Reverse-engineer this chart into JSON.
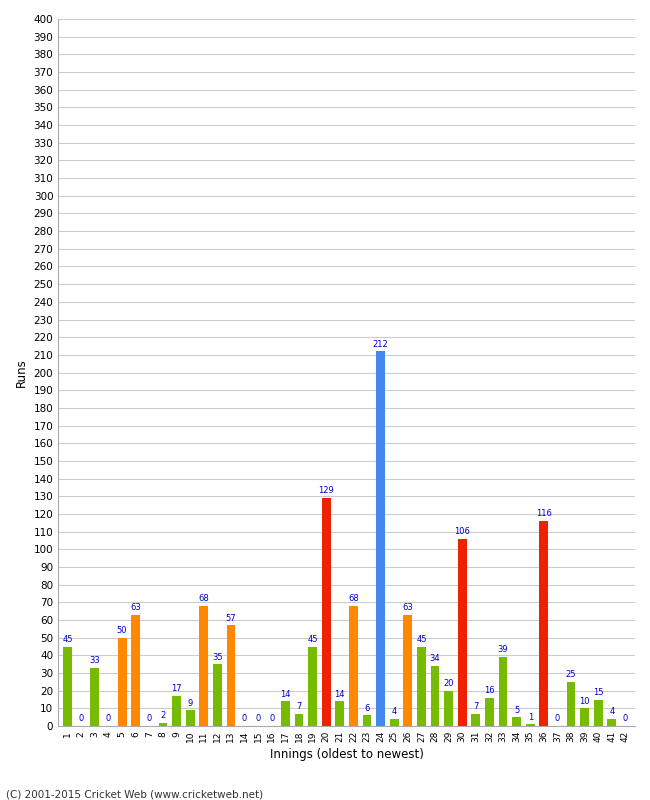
{
  "innings": [
    1,
    2,
    3,
    4,
    5,
    6,
    7,
    8,
    9,
    10,
    11,
    12,
    13,
    14,
    15,
    16,
    17,
    18,
    19,
    20,
    21,
    22,
    23,
    24,
    25,
    26,
    27,
    28,
    29,
    30,
    31,
    32,
    33,
    34,
    35,
    36,
    37,
    38,
    39,
    40,
    41,
    42
  ],
  "values": [
    45,
    0,
    33,
    0,
    50,
    63,
    0,
    2,
    17,
    9,
    68,
    35,
    57,
    0,
    0,
    0,
    14,
    7,
    45,
    129,
    14,
    68,
    6,
    212,
    4,
    63,
    45,
    34,
    20,
    106,
    7,
    16,
    39,
    5,
    1,
    116,
    0,
    25,
    10,
    15,
    4,
    0
  ],
  "colors": [
    "#77bb00",
    "#77bb00",
    "#77bb00",
    "#77bb00",
    "#ff8800",
    "#ff8800",
    "#77bb00",
    "#77bb00",
    "#77bb00",
    "#77bb00",
    "#ff8800",
    "#77bb00",
    "#ff8800",
    "#77bb00",
    "#77bb00",
    "#77bb00",
    "#77bb00",
    "#77bb00",
    "#77bb00",
    "#ee2200",
    "#77bb00",
    "#ff8800",
    "#77bb00",
    "#4488ee",
    "#77bb00",
    "#ff8800",
    "#77bb00",
    "#77bb00",
    "#77bb00",
    "#ee2200",
    "#77bb00",
    "#77bb00",
    "#77bb00",
    "#77bb00",
    "#77bb00",
    "#ee2200",
    "#77bb00",
    "#77bb00",
    "#77bb00",
    "#77bb00",
    "#77bb00",
    "#77bb00"
  ],
  "xlabel": "Innings (oldest to newest)",
  "ylabel": "Runs",
  "ylim": [
    0,
    400
  ],
  "ytick_step": 10,
  "footer": "(C) 2001-2015 Cricket Web (www.cricketweb.net)",
  "bg_color": "#ffffff",
  "grid_color": "#cccccc",
  "label_color": "#0000cc"
}
